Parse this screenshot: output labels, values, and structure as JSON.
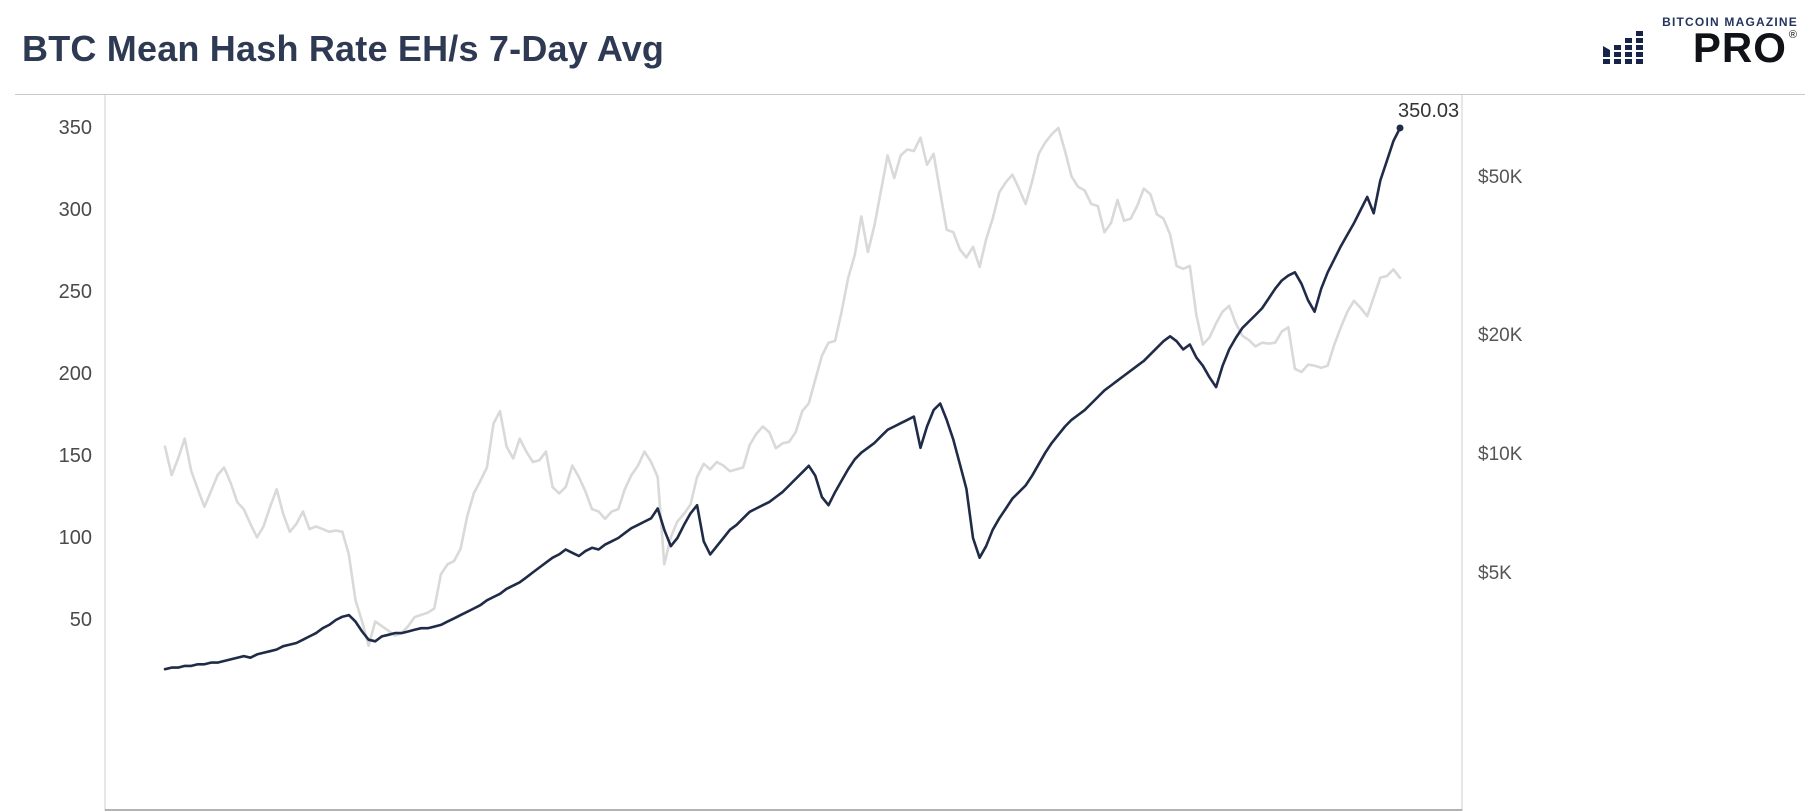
{
  "header": {
    "title": "BTC Mean Hash Rate EH/s 7-Day Avg",
    "logo": {
      "top": "BITCOIN MAGAZINE",
      "main": "PRO",
      "registered": "®"
    }
  },
  "chart_data": {
    "type": "line",
    "title": "BTC Mean Hash Rate EH/s 7-Day Avg",
    "grid": false,
    "legend": "none",
    "x_domain": [
      "2018-02",
      "2023-04"
    ],
    "x_axis_labels_visible": false,
    "left_axis": {
      "scale": "linear",
      "ticks": [
        350,
        300,
        250,
        200,
        150,
        100,
        50
      ],
      "range": [
        14,
        362
      ]
    },
    "right_axis": {
      "scale": "log",
      "ticks": [
        {
          "label": "$50K",
          "value": 50000
        },
        {
          "label": "$20K",
          "value": 20000
        },
        {
          "label": "$10K",
          "value": 10000
        },
        {
          "label": "$5K",
          "value": 5000
        }
      ]
    },
    "annotation": {
      "label": "350.03"
    },
    "colors": {
      "hash_line": "#1f2b47",
      "price_line": "#d9d9d9",
      "axis": "#cfcfcf"
    },
    "series": [
      {
        "name": "btc_price_usd",
        "axis": "right",
        "color": "#d9d9d9",
        "values": [
          10500,
          8900,
          9800,
          11000,
          9100,
          8200,
          7400,
          8100,
          8900,
          9300,
          8500,
          7600,
          7300,
          6700,
          6200,
          6600,
          7400,
          8200,
          7100,
          6400,
          6700,
          7200,
          6500,
          6600,
          6500,
          6400,
          6450,
          6400,
          5600,
          4300,
          3800,
          3300,
          3800,
          3700,
          3600,
          3500,
          3550,
          3700,
          3900,
          3950,
          4000,
          4100,
          5000,
          5300,
          5400,
          5800,
          7000,
          8000,
          8600,
          9300,
          12000,
          12900,
          10500,
          9800,
          11000,
          10200,
          9600,
          9700,
          10200,
          8300,
          8000,
          8300,
          9400,
          8800,
          8100,
          7300,
          7200,
          6900,
          7200,
          7300,
          8200,
          8900,
          9400,
          10200,
          9600,
          8800,
          5300,
          6200,
          6800,
          7100,
          7500,
          8800,
          9500,
          9200,
          9600,
          9400,
          9100,
          9200,
          9300,
          10600,
          11300,
          11800,
          11400,
          10400,
          10700,
          10800,
          11400,
          12900,
          13500,
          15500,
          17800,
          19200,
          19400,
          23000,
          28000,
          32000,
          40000,
          32500,
          38000,
          46500,
          57000,
          50000,
          57000,
          59000,
          58500,
          63200,
          54000,
          57500,
          46000,
          37000,
          36500,
          33000,
          31500,
          33500,
          29800,
          35000,
          39500,
          46000,
          48800,
          51000,
          47000,
          43000,
          49000,
          57500,
          61500,
          64500,
          66900,
          58500,
          50500,
          47500,
          46500,
          43000,
          42500,
          36500,
          38500,
          44000,
          39000,
          39500,
          42500,
          47000,
          45500,
          40500,
          39500,
          36000,
          30000,
          29500,
          30000,
          22500,
          19000,
          19800,
          21500,
          23000,
          23800,
          21500,
          20000,
          19500,
          18800,
          19200,
          19100,
          19200,
          20500,
          21000,
          16500,
          16200,
          16900,
          16800,
          16600,
          16800,
          19000,
          21000,
          23000,
          24500,
          23500,
          22400,
          25000,
          28000,
          28300,
          29400,
          28000
        ]
      },
      {
        "name": "mean_hash_rate_ehs_7day_avg",
        "axis": "left",
        "color": "#1f2b47",
        "values": [
          20,
          21,
          21,
          22,
          22,
          23,
          23,
          24,
          24,
          25,
          26,
          27,
          28,
          27,
          29,
          30,
          31,
          32,
          34,
          35,
          36,
          38,
          40,
          42,
          45,
          47,
          50,
          52,
          53,
          49,
          43,
          38,
          37,
          40,
          41,
          42,
          42,
          43,
          44,
          45,
          45,
          46,
          47,
          49,
          51,
          53,
          55,
          57,
          59,
          62,
          64,
          66,
          69,
          71,
          73,
          76,
          79,
          82,
          85,
          88,
          90,
          93,
          91,
          89,
          92,
          94,
          93,
          96,
          98,
          100,
          103,
          106,
          108,
          110,
          112,
          118,
          105,
          95,
          100,
          108,
          115,
          120,
          98,
          90,
          95,
          100,
          105,
          108,
          112,
          116,
          118,
          120,
          122,
          125,
          128,
          132,
          136,
          140,
          144,
          138,
          125,
          120,
          128,
          135,
          142,
          148,
          152,
          155,
          158,
          162,
          166,
          168,
          170,
          172,
          174,
          155,
          168,
          178,
          182,
          172,
          160,
          145,
          130,
          100,
          88,
          95,
          105,
          112,
          118,
          124,
          128,
          132,
          138,
          145,
          152,
          158,
          163,
          168,
          172,
          175,
          178,
          182,
          186,
          190,
          193,
          196,
          199,
          202,
          205,
          208,
          212,
          216,
          220,
          223,
          220,
          215,
          218,
          210,
          205,
          198,
          192,
          205,
          215,
          222,
          228,
          232,
          236,
          240,
          246,
          252,
          257,
          260,
          262,
          255,
          245,
          238,
          252,
          262,
          270,
          278,
          285,
          292,
          300,
          308,
          298,
          318,
          330,
          342,
          350.03
        ]
      }
    ]
  }
}
